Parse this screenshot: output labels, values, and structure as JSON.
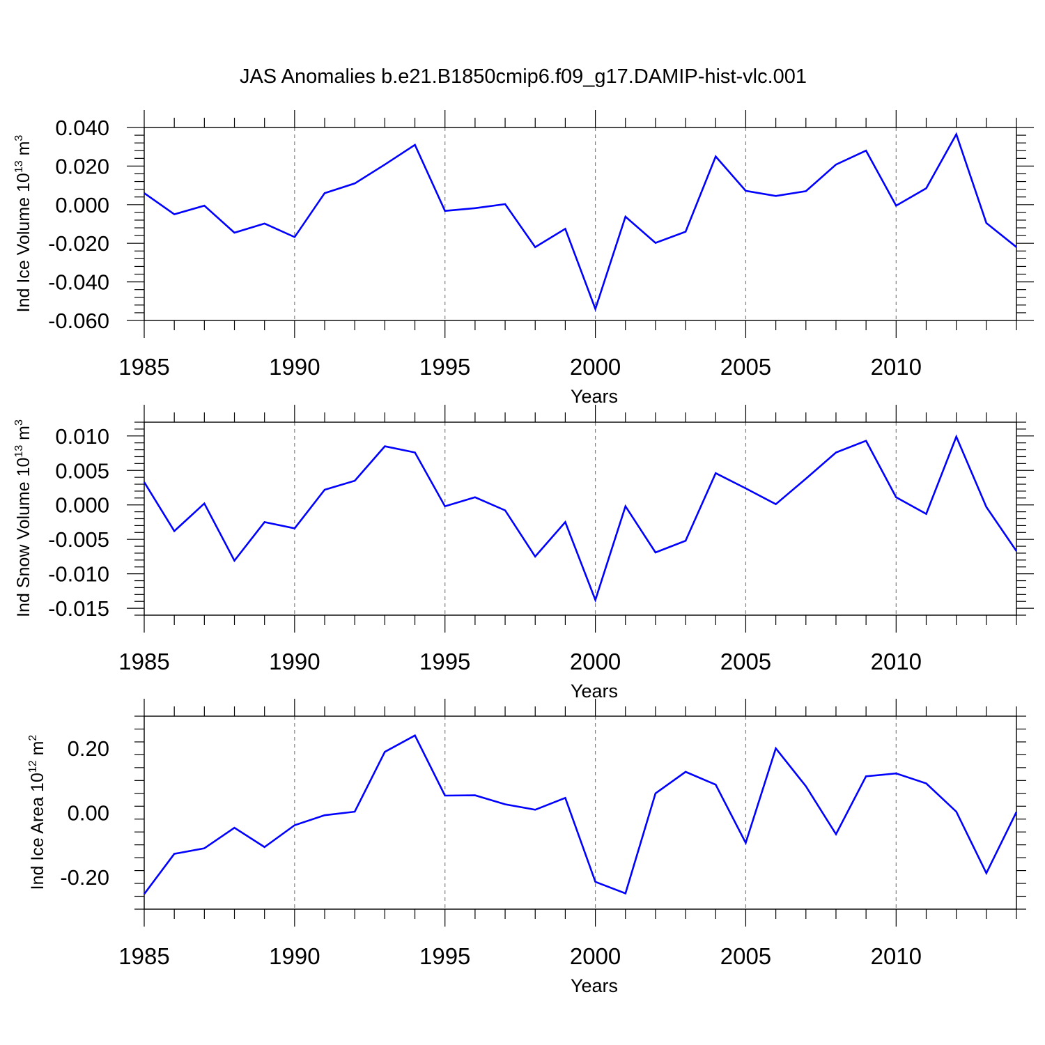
{
  "title": "JAS Anomalies b.e21.B1850cmip6.f09_g17.DAMIP-hist-vlc.001",
  "colors": {
    "line": "#0000ff",
    "axis": "#000000",
    "grid": "#808080"
  },
  "chart_data": [
    {
      "type": "line",
      "ylabel": "Ind Ice Volume",
      "yunit_base": "10",
      "yunit_exp": "13",
      "yunit_sym": "m",
      "yunit_pow": "3",
      "xlabel": "Years",
      "xlim": [
        1985,
        2014
      ],
      "ylim": [
        -0.06,
        0.04
      ],
      "xticks": [
        "1985",
        "1990",
        "1995",
        "2000",
        "2005",
        "2010"
      ],
      "yticks": [
        "0.040",
        "0.020",
        "0.000",
        "-0.020",
        "-0.040",
        "-0.060"
      ],
      "grid_x": [
        1990,
        1995,
        2000,
        2005,
        2010
      ],
      "series": [
        {
          "name": "Ind Ice Volume",
          "x": [
            1985,
            1986,
            1987,
            1988,
            1989,
            1990,
            1991,
            1992,
            1993,
            1994,
            1995,
            1996,
            1997,
            1998,
            1999,
            2000,
            2001,
            2002,
            2003,
            2004,
            2005,
            2006,
            2007,
            2008,
            2009,
            2010,
            2011,
            2012,
            2013,
            2014
          ],
          "values": [
            0.006,
            -0.005,
            -0.0005,
            -0.0145,
            -0.0098,
            -0.0168,
            0.006,
            0.011,
            0.0208,
            0.031,
            -0.0032,
            -0.0018,
            0.0003,
            -0.022,
            -0.0125,
            -0.054,
            -0.0062,
            -0.0198,
            -0.014,
            0.025,
            0.0072,
            0.0045,
            0.007,
            0.0208,
            0.028,
            -0.0005,
            0.0085,
            0.0365,
            -0.0095,
            -0.022
          ]
        }
      ]
    },
    {
      "type": "line",
      "ylabel": "Ind Snow Volume",
      "yunit_base": "10",
      "yunit_exp": "13",
      "yunit_sym": "m",
      "yunit_pow": "3",
      "xlabel": "Years",
      "xlim": [
        1985,
        2014
      ],
      "ylim": [
        -0.016,
        0.012
      ],
      "xticks": [
        "1985",
        "1990",
        "1995",
        "2000",
        "2005",
        "2010"
      ],
      "yticks": [
        "0.010",
        "0.005",
        "0.000",
        "-0.005",
        "-0.010",
        "-0.015"
      ],
      "grid_x": [
        1990,
        1995,
        2000,
        2005,
        2010
      ],
      "series": [
        {
          "name": "Ind Snow Volume",
          "x": [
            1985,
            1986,
            1987,
            1988,
            1989,
            1990,
            1991,
            1992,
            1993,
            1994,
            1995,
            1996,
            1997,
            1998,
            1999,
            2000,
            2001,
            2002,
            2003,
            2004,
            2005,
            2006,
            2007,
            2008,
            2009,
            2010,
            2011,
            2012,
            2013,
            2014
          ],
          "values": [
            0.0033,
            -0.0038,
            0.0002,
            -0.0081,
            -0.0025,
            -0.0034,
            0.0022,
            0.0035,
            0.0085,
            0.0076,
            -0.0002,
            0.0011,
            -0.0008,
            -0.0075,
            -0.0025,
            -0.0138,
            -0.0002,
            -0.0069,
            -0.0052,
            0.0046,
            0.0024,
            0.0001,
            0.0038,
            0.0076,
            0.0093,
            0.0011,
            -0.0013,
            0.0099,
            -0.0003,
            -0.0067
          ]
        }
      ]
    },
    {
      "type": "line",
      "ylabel": "Ind Ice Area",
      "yunit_base": "10",
      "yunit_exp": "12",
      "yunit_sym": "m",
      "yunit_pow": "2",
      "xlabel": "Years",
      "xlim": [
        1985,
        2014
      ],
      "ylim": [
        -0.3,
        0.3
      ],
      "xticks": [
        "1985",
        "1990",
        "1995",
        "2000",
        "2005",
        "2010"
      ],
      "yticks": [
        "0.20",
        "0.00",
        "-0.20"
      ],
      "grid_x": [
        1990,
        1995,
        2000,
        2005,
        2010
      ],
      "series": [
        {
          "name": "Ind Ice Area",
          "x": [
            1985,
            1986,
            1987,
            1988,
            1989,
            1990,
            1991,
            1992,
            1993,
            1994,
            1995,
            1996,
            1997,
            1998,
            1999,
            2000,
            2001,
            2002,
            2003,
            2004,
            2005,
            2006,
            2007,
            2008,
            2009,
            2010,
            2011,
            2012,
            2013,
            2014
          ],
          "values": [
            -0.253,
            -0.128,
            -0.111,
            -0.047,
            -0.107,
            -0.039,
            -0.008,
            0.003,
            0.189,
            0.24,
            0.053,
            0.054,
            0.026,
            0.009,
            0.046,
            -0.215,
            -0.251,
            0.06,
            0.127,
            0.087,
            -0.094,
            0.2,
            0.082,
            -0.067,
            0.113,
            0.122,
            0.091,
            0.003,
            -0.188,
            0.002
          ]
        }
      ]
    }
  ]
}
